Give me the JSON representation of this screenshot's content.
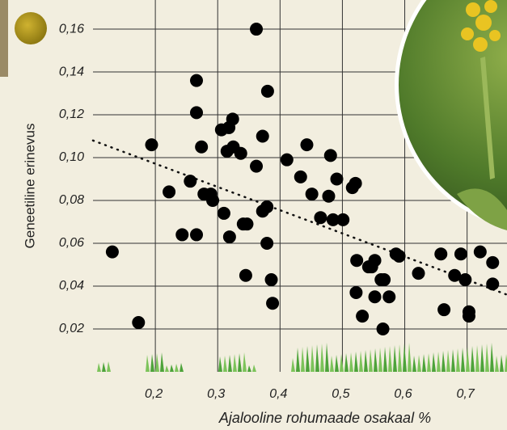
{
  "chart_data": {
    "type": "scatter",
    "xlabel": "Ajalooline rohumaade osakaal %",
    "ylabel": "Geneetiline erinevus",
    "xlim": [
      0.1,
      0.764
    ],
    "ylim": [
      0.0,
      0.1736
    ],
    "xticks": [
      {
        "value": 0.2,
        "label": "0,2"
      },
      {
        "value": 0.3,
        "label": "0,3"
      },
      {
        "value": 0.4,
        "label": "0,4"
      },
      {
        "value": 0.5,
        "label": "0,5"
      },
      {
        "value": 0.6,
        "label": "0,6"
      },
      {
        "value": 0.7,
        "label": "0,7"
      }
    ],
    "yticks": [
      {
        "value": 0.02,
        "label": "0,02"
      },
      {
        "value": 0.04,
        "label": "0,04"
      },
      {
        "value": 0.06,
        "label": "0,06"
      },
      {
        "value": 0.08,
        "label": "0,08"
      },
      {
        "value": 0.1,
        "label": "0,10"
      },
      {
        "value": 0.12,
        "label": "0,12"
      },
      {
        "value": 0.14,
        "label": "0,14"
      },
      {
        "value": 0.16,
        "label": "0,16"
      }
    ],
    "grid": true,
    "color": "#000000",
    "x": [
      0.131,
      0.173,
      0.194,
      0.222,
      0.243,
      0.256,
      0.266,
      0.266,
      0.266,
      0.274,
      0.278,
      0.289,
      0.292,
      0.306,
      0.31,
      0.315,
      0.318,
      0.319,
      0.324,
      0.325,
      0.337,
      0.341,
      0.347,
      0.345,
      0.362,
      0.362,
      0.372,
      0.372,
      0.379,
      0.379,
      0.38,
      0.386,
      0.388,
      0.411,
      0.433,
      0.443,
      0.451,
      0.465,
      0.478,
      0.481,
      0.485,
      0.491,
      0.501,
      0.516,
      0.521,
      0.523,
      0.522,
      0.532,
      0.542,
      0.547,
      0.552,
      0.552,
      0.562,
      0.567,
      0.565,
      0.575,
      0.586,
      0.591,
      0.622,
      0.658,
      0.663,
      0.68,
      0.69,
      0.697,
      0.703,
      0.703,
      0.721,
      0.741,
      0.741
    ],
    "y": [
      0.056,
      0.023,
      0.106,
      0.084,
      0.064,
      0.089,
      0.136,
      0.121,
      0.064,
      0.105,
      0.083,
      0.083,
      0.08,
      0.113,
      0.074,
      0.103,
      0.114,
      0.063,
      0.118,
      0.105,
      0.102,
      0.069,
      0.069,
      0.045,
      0.16,
      0.096,
      0.11,
      0.075,
      0.077,
      0.06,
      0.131,
      0.043,
      0.032,
      0.099,
      0.091,
      0.106,
      0.083,
      0.072,
      0.082,
      0.101,
      0.071,
      0.09,
      0.071,
      0.086,
      0.088,
      0.052,
      0.037,
      0.026,
      0.049,
      0.049,
      0.035,
      0.052,
      0.043,
      0.043,
      0.02,
      0.035,
      0.055,
      0.054,
      0.046,
      0.055,
      0.029,
      0.045,
      0.055,
      0.043,
      0.026,
      0.028,
      0.056,
      0.051,
      0.041
    ],
    "trendline": {
      "x": [
        0.1,
        0.764
      ],
      "y": [
        0.108,
        0.036
      ]
    }
  }
}
